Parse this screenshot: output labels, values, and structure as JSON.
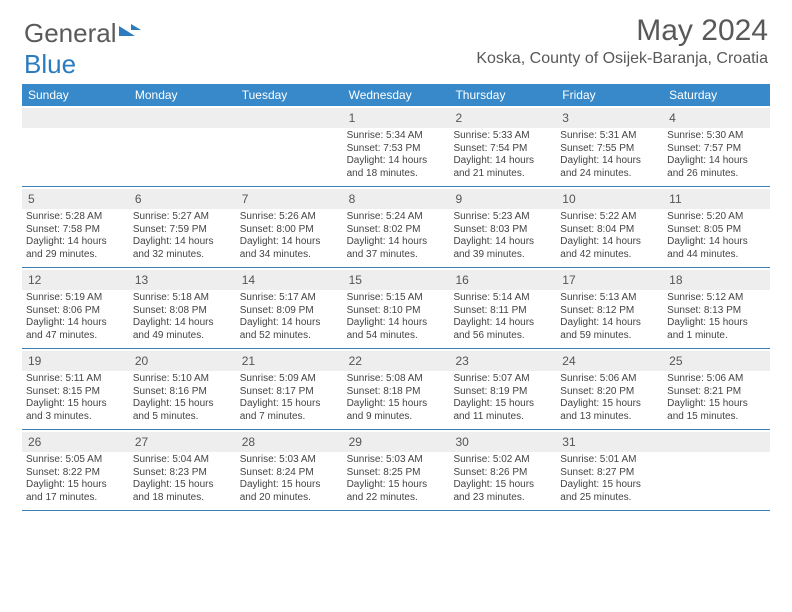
{
  "logo": {
    "text1": "General",
    "text2": "Blue"
  },
  "header": {
    "month_title": "May 2024",
    "location": "Koska, County of Osijek-Baranja, Croatia"
  },
  "style": {
    "header_bg": "#3789c9",
    "header_text": "#ffffff",
    "daynum_bg": "#eeeeee",
    "border_color": "#3b7fb5",
    "body_text": "#444444",
    "title_color": "#595959",
    "month_fontsize": 30,
    "location_fontsize": 16,
    "dayhead_fontsize": 12,
    "info_fontsize": 10,
    "background": "#ffffff"
  },
  "weekdays": [
    "Sunday",
    "Monday",
    "Tuesday",
    "Wednesday",
    "Thursday",
    "Friday",
    "Saturday"
  ],
  "weeks": [
    [
      {
        "blank": true
      },
      {
        "blank": true
      },
      {
        "blank": true
      },
      {
        "day": "1",
        "sunrise": "5:34 AM",
        "sunset": "7:53 PM",
        "daylight": "14 hours and 18 minutes."
      },
      {
        "day": "2",
        "sunrise": "5:33 AM",
        "sunset": "7:54 PM",
        "daylight": "14 hours and 21 minutes."
      },
      {
        "day": "3",
        "sunrise": "5:31 AM",
        "sunset": "7:55 PM",
        "daylight": "14 hours and 24 minutes."
      },
      {
        "day": "4",
        "sunrise": "5:30 AM",
        "sunset": "7:57 PM",
        "daylight": "14 hours and 26 minutes."
      }
    ],
    [
      {
        "day": "5",
        "sunrise": "5:28 AM",
        "sunset": "7:58 PM",
        "daylight": "14 hours and 29 minutes."
      },
      {
        "day": "6",
        "sunrise": "5:27 AM",
        "sunset": "7:59 PM",
        "daylight": "14 hours and 32 minutes."
      },
      {
        "day": "7",
        "sunrise": "5:26 AM",
        "sunset": "8:00 PM",
        "daylight": "14 hours and 34 minutes."
      },
      {
        "day": "8",
        "sunrise": "5:24 AM",
        "sunset": "8:02 PM",
        "daylight": "14 hours and 37 minutes."
      },
      {
        "day": "9",
        "sunrise": "5:23 AM",
        "sunset": "8:03 PM",
        "daylight": "14 hours and 39 minutes."
      },
      {
        "day": "10",
        "sunrise": "5:22 AM",
        "sunset": "8:04 PM",
        "daylight": "14 hours and 42 minutes."
      },
      {
        "day": "11",
        "sunrise": "5:20 AM",
        "sunset": "8:05 PM",
        "daylight": "14 hours and 44 minutes."
      }
    ],
    [
      {
        "day": "12",
        "sunrise": "5:19 AM",
        "sunset": "8:06 PM",
        "daylight": "14 hours and 47 minutes."
      },
      {
        "day": "13",
        "sunrise": "5:18 AM",
        "sunset": "8:08 PM",
        "daylight": "14 hours and 49 minutes."
      },
      {
        "day": "14",
        "sunrise": "5:17 AM",
        "sunset": "8:09 PM",
        "daylight": "14 hours and 52 minutes."
      },
      {
        "day": "15",
        "sunrise": "5:15 AM",
        "sunset": "8:10 PM",
        "daylight": "14 hours and 54 minutes."
      },
      {
        "day": "16",
        "sunrise": "5:14 AM",
        "sunset": "8:11 PM",
        "daylight": "14 hours and 56 minutes."
      },
      {
        "day": "17",
        "sunrise": "5:13 AM",
        "sunset": "8:12 PM",
        "daylight": "14 hours and 59 minutes."
      },
      {
        "day": "18",
        "sunrise": "5:12 AM",
        "sunset": "8:13 PM",
        "daylight": "15 hours and 1 minute."
      }
    ],
    [
      {
        "day": "19",
        "sunrise": "5:11 AM",
        "sunset": "8:15 PM",
        "daylight": "15 hours and 3 minutes."
      },
      {
        "day": "20",
        "sunrise": "5:10 AM",
        "sunset": "8:16 PM",
        "daylight": "15 hours and 5 minutes."
      },
      {
        "day": "21",
        "sunrise": "5:09 AM",
        "sunset": "8:17 PM",
        "daylight": "15 hours and 7 minutes."
      },
      {
        "day": "22",
        "sunrise": "5:08 AM",
        "sunset": "8:18 PM",
        "daylight": "15 hours and 9 minutes."
      },
      {
        "day": "23",
        "sunrise": "5:07 AM",
        "sunset": "8:19 PM",
        "daylight": "15 hours and 11 minutes."
      },
      {
        "day": "24",
        "sunrise": "5:06 AM",
        "sunset": "8:20 PM",
        "daylight": "15 hours and 13 minutes."
      },
      {
        "day": "25",
        "sunrise": "5:06 AM",
        "sunset": "8:21 PM",
        "daylight": "15 hours and 15 minutes."
      }
    ],
    [
      {
        "day": "26",
        "sunrise": "5:05 AM",
        "sunset": "8:22 PM",
        "daylight": "15 hours and 17 minutes."
      },
      {
        "day": "27",
        "sunrise": "5:04 AM",
        "sunset": "8:23 PM",
        "daylight": "15 hours and 18 minutes."
      },
      {
        "day": "28",
        "sunrise": "5:03 AM",
        "sunset": "8:24 PM",
        "daylight": "15 hours and 20 minutes."
      },
      {
        "day": "29",
        "sunrise": "5:03 AM",
        "sunset": "8:25 PM",
        "daylight": "15 hours and 22 minutes."
      },
      {
        "day": "30",
        "sunrise": "5:02 AM",
        "sunset": "8:26 PM",
        "daylight": "15 hours and 23 minutes."
      },
      {
        "day": "31",
        "sunrise": "5:01 AM",
        "sunset": "8:27 PM",
        "daylight": "15 hours and 25 minutes."
      },
      {
        "blank": true
      }
    ]
  ],
  "labels": {
    "sunrise_prefix": "Sunrise: ",
    "sunset_prefix": "Sunset: ",
    "daylight_prefix": "Daylight: "
  }
}
